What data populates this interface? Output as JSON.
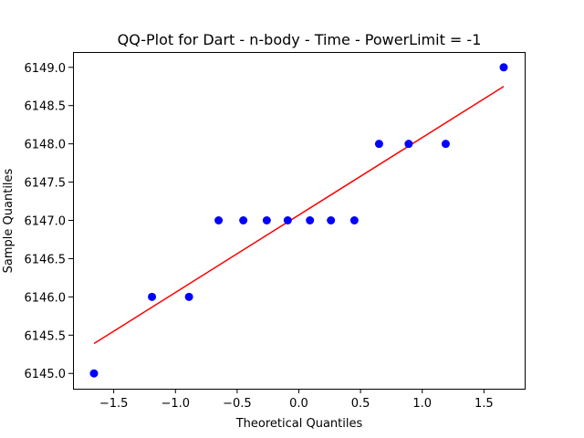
{
  "chart_data": {
    "type": "scatter",
    "title": "QQ-Plot for Dart - n-body - Time - PowerLimit = -1",
    "xlabel": "Theoretical Quantiles",
    "ylabel": "Sample Quantiles",
    "xlim": [
      -1.83,
      1.83
    ],
    "ylim": [
      6144.8,
      6149.2
    ],
    "x_ticks": [
      -1.5,
      -1.0,
      -0.5,
      0.0,
      0.5,
      1.0,
      1.5
    ],
    "x_tick_labels": [
      "−1.5",
      "−1.0",
      "−0.5",
      "0.0",
      "0.5",
      "1.0",
      "1.5"
    ],
    "y_ticks": [
      6145.0,
      6145.5,
      6146.0,
      6146.5,
      6147.0,
      6147.5,
      6148.0,
      6148.5,
      6149.0
    ],
    "y_tick_labels": [
      "6145.0",
      "6145.5",
      "6146.0",
      "6146.5",
      "6147.0",
      "6147.5",
      "6148.0",
      "6148.5",
      "6149.0"
    ],
    "grid": false,
    "series": [
      {
        "type": "scatter",
        "color": "#0000ff",
        "points": [
          {
            "x": -1.66,
            "y": 6145.0
          },
          {
            "x": -1.19,
            "y": 6146.0
          },
          {
            "x": -0.89,
            "y": 6146.0
          },
          {
            "x": -0.65,
            "y": 6147.0
          },
          {
            "x": -0.45,
            "y": 6147.0
          },
          {
            "x": -0.26,
            "y": 6147.0
          },
          {
            "x": -0.09,
            "y": 6147.0
          },
          {
            "x": 0.09,
            "y": 6147.0
          },
          {
            "x": 0.26,
            "y": 6147.0
          },
          {
            "x": 0.45,
            "y": 6147.0
          },
          {
            "x": 0.65,
            "y": 6148.0
          },
          {
            "x": 0.89,
            "y": 6148.0
          },
          {
            "x": 1.19,
            "y": 6148.0
          },
          {
            "x": 1.66,
            "y": 6149.0
          }
        ]
      },
      {
        "type": "line",
        "color": "#ff0000",
        "points": [
          {
            "x": -1.66,
            "y": 6145.39
          },
          {
            "x": 1.66,
            "y": 6148.75
          }
        ]
      }
    ]
  }
}
